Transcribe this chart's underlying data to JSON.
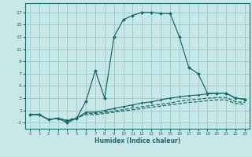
{
  "xlabel": "Humidex (Indice chaleur)",
  "xlim": [
    -0.5,
    23.5
  ],
  "ylim": [
    -2.0,
    18.5
  ],
  "yticks": [
    -1,
    1,
    3,
    5,
    7,
    9,
    11,
    13,
    15,
    17
  ],
  "xticks": [
    0,
    1,
    2,
    3,
    4,
    5,
    6,
    7,
    8,
    9,
    10,
    11,
    12,
    13,
    14,
    15,
    16,
    17,
    18,
    19,
    20,
    21,
    22,
    23
  ],
  "background_color": "#c8e8e8",
  "grid_color": "#9ecece",
  "line_color": "#1a6b6b",
  "lines": [
    {
      "x": [
        0,
        1,
        2,
        3,
        4,
        5,
        6,
        7,
        8,
        9,
        10,
        11,
        12,
        13,
        14,
        15,
        16,
        17,
        18,
        19,
        20,
        21,
        22,
        23
      ],
      "y": [
        0.3,
        0.3,
        -0.5,
        -0.3,
        -1.0,
        -0.3,
        2.5,
        7.5,
        3.0,
        13.0,
        15.8,
        16.5,
        17.0,
        17.0,
        16.8,
        16.8,
        13.0,
        8.0,
        7.0,
        3.8,
        3.8,
        3.8,
        3.0,
        2.8
      ],
      "style": "solid",
      "marker": "D",
      "ms": 2.0
    },
    {
      "x": [
        0,
        1,
        2,
        3,
        4,
        5,
        6,
        7,
        8,
        9,
        10,
        11,
        12,
        13,
        14,
        15,
        16,
        17,
        18,
        19,
        20,
        21,
        22,
        23
      ],
      "y": [
        0.3,
        0.3,
        -0.5,
        -0.3,
        -0.7,
        -0.3,
        0.7,
        0.7,
        1.0,
        1.3,
        1.6,
        1.9,
        2.2,
        2.4,
        2.7,
        3.0,
        3.2,
        3.4,
        3.5,
        3.7,
        3.8,
        3.8,
        3.0,
        2.8
      ],
      "style": "solid",
      "marker": "D",
      "ms": 1.5
    },
    {
      "x": [
        0,
        1,
        2,
        3,
        4,
        5,
        6,
        7,
        8,
        9,
        10,
        11,
        12,
        13,
        14,
        15,
        16,
        17,
        18,
        19,
        20,
        21,
        22,
        23
      ],
      "y": [
        0.3,
        0.3,
        -0.5,
        -0.3,
        -0.8,
        -0.3,
        0.5,
        0.5,
        0.7,
        0.9,
        1.1,
        1.4,
        1.6,
        1.8,
        2.0,
        2.2,
        2.5,
        2.7,
        2.8,
        3.0,
        3.1,
        3.1,
        2.4,
        2.3
      ],
      "style": "dashed",
      "marker": null,
      "ms": 0
    },
    {
      "x": [
        0,
        1,
        2,
        3,
        4,
        5,
        6,
        7,
        8,
        9,
        10,
        11,
        12,
        13,
        14,
        15,
        16,
        17,
        18,
        19,
        20,
        21,
        22,
        23
      ],
      "y": [
        0.3,
        0.3,
        -0.5,
        -0.3,
        -0.6,
        -0.2,
        0.3,
        0.3,
        0.5,
        0.7,
        0.9,
        1.1,
        1.3,
        1.5,
        1.7,
        1.9,
        2.1,
        2.3,
        2.4,
        2.6,
        2.7,
        2.7,
        2.1,
        2.0
      ],
      "style": "dashed",
      "marker": null,
      "ms": 0
    }
  ]
}
